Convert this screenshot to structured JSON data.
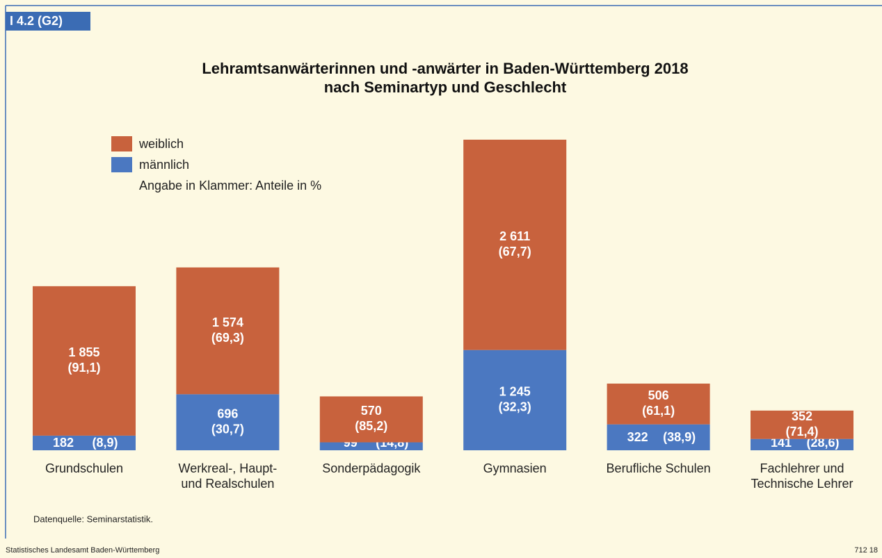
{
  "tag": "I 4.2 (G2)",
  "chart_data": {
    "type": "stacked_bar",
    "title": "Lehramtsanwärterinnen und -anwärter in Baden-Württemberg 2018",
    "subtitle": "nach Seminartyp und Geschlecht",
    "legend_note": "Angabe in Klammer: Anteile in %",
    "categories": [
      "Grundschulen",
      "Werkreal-, Haupt-\nund Realschulen",
      "Sonderpädagogik",
      "Gymnasien",
      "Berufliche Schulen",
      "Fachlehrer und\nTechnische Lehrer"
    ],
    "series": [
      {
        "name": "männlich",
        "color": "#4b78c1",
        "values": [
          182,
          696,
          99,
          1245,
          322,
          141
        ],
        "value_labels": [
          "182",
          "696",
          "99",
          "1 245",
          "322",
          "141"
        ],
        "shares": [
          8.9,
          30.7,
          14.8,
          32.3,
          38.9,
          28.6
        ],
        "share_labels": [
          "(8,9)",
          "(30,7)",
          "(14,8)",
          "(32,3)",
          "(38,9)",
          "(28,6)"
        ]
      },
      {
        "name": "weiblich",
        "color": "#c8623d",
        "values": [
          1855,
          1574,
          570,
          2611,
          506,
          352
        ],
        "value_labels": [
          "1 855",
          "1 574",
          "570",
          "2 611",
          "506",
          "352"
        ],
        "shares": [
          91.1,
          69.3,
          85.2,
          67.7,
          61.1,
          71.4
        ],
        "share_labels": [
          "(91,1)",
          "(69,3)",
          "(85,2)",
          "(67,7)",
          "(61,1)",
          "(71,4)"
        ]
      }
    ]
  },
  "source": "Datenquelle: Seminarstatistik.",
  "footer_left": "Statistisches Landesamt Baden-Württemberg",
  "footer_right": "712 18"
}
